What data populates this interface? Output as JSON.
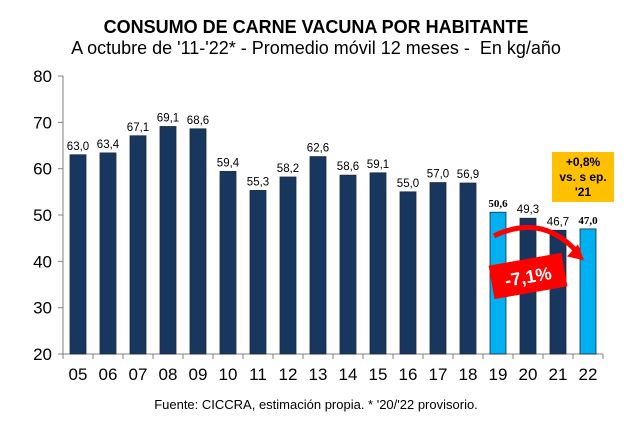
{
  "chart_data": {
    "type": "bar",
    "title": "CONSUMO DE CARNE VACUNA POR HABITANTE",
    "subtitle": "A octubre de '11-'22* - Promedio móvil 12 meses -  En kg/año",
    "categories": [
      "05",
      "06",
      "07",
      "08",
      "09",
      "10",
      "11",
      "12",
      "13",
      "14",
      "15",
      "16",
      "17",
      "18",
      "19",
      "20",
      "21",
      "22"
    ],
    "values": [
      63.0,
      63.4,
      67.1,
      69.1,
      68.6,
      59.4,
      55.3,
      58.2,
      62.6,
      58.6,
      59.1,
      55.0,
      57.0,
      56.9,
      50.6,
      49.3,
      46.7,
      47.0
    ],
    "value_labels": [
      "63,0",
      "63,4",
      "67,1",
      "69,1",
      "68,6",
      "59,4",
      "55,3",
      "58,2",
      "62,6",
      "58,6",
      "59,1",
      "55,0",
      "57,0",
      "56,9",
      "50,6",
      "49,3",
      "46,7",
      "47,0"
    ],
    "highlighted": [
      false,
      false,
      false,
      false,
      false,
      false,
      false,
      false,
      false,
      false,
      false,
      false,
      false,
      false,
      true,
      false,
      false,
      true
    ],
    "ylim": [
      20,
      80
    ],
    "yticks": [
      20,
      30,
      40,
      50,
      60,
      70,
      80
    ],
    "xlabel": "",
    "ylabel": "",
    "grid": false,
    "colors": {
      "bar": "#17375e",
      "highlight": "#00b0f0",
      "arrow": "#ff0000",
      "callout": "#ffc000"
    },
    "annotations": {
      "change_label": "-7,1%",
      "callout_lines": [
        "+0,8%",
        "vs. s ep.",
        "'21"
      ]
    },
    "source": "Fuente: CICCRA, estimación propia. * '20/'22 provisorio."
  }
}
